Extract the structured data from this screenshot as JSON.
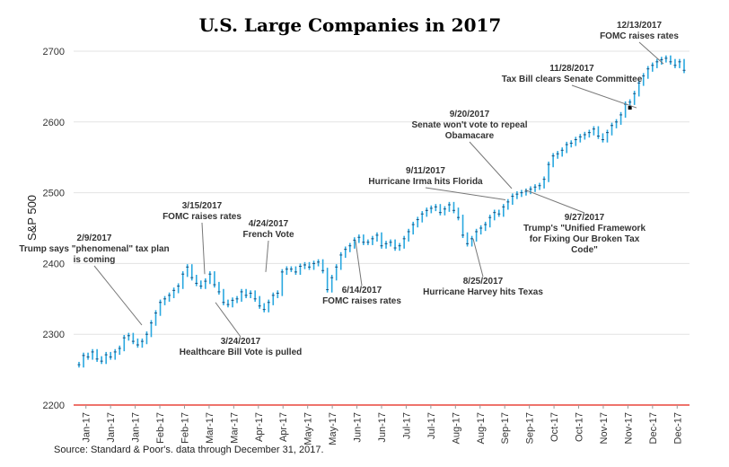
{
  "chart_data": {
    "type": "line",
    "title": "U.S. Large Companies in 2017",
    "ylabel": "S&P 500",
    "xlabel": "",
    "ylim": [
      2200,
      2700
    ],
    "yticks": [
      2200,
      2300,
      2400,
      2500,
      2600,
      2700
    ],
    "x_tick_labels": [
      "Jan-17",
      "Jan-17",
      "Jan-17",
      "Feb-17",
      "Feb-17",
      "Mar-17",
      "Mar-17",
      "Apr-17",
      "Apr-17",
      "May-17",
      "May-17",
      "Jun-17",
      "Jun-17",
      "Jul-17",
      "Jul-17",
      "Aug-17",
      "Aug-17",
      "Sep-17",
      "Sep-17",
      "Oct-17",
      "Oct-17",
      "Nov-17",
      "Nov-17",
      "Dec-17",
      "Dec-17"
    ],
    "series": [
      {
        "values": [
          2257,
          2270,
          2268,
          2275,
          2265,
          2262,
          2271,
          2268,
          2275,
          2280,
          2295,
          2298,
          2290,
          2285,
          2290,
          2300,
          2316,
          2330,
          2345,
          2350,
          2355,
          2362,
          2368,
          2385,
          2395,
          2380,
          2372,
          2368,
          2375,
          2385,
          2370,
          2360,
          2345,
          2342,
          2348,
          2350,
          2360,
          2355,
          2358,
          2350,
          2340,
          2335,
          2345,
          2355,
          2358,
          2388,
          2392,
          2392,
          2388,
          2396,
          2398,
          2395,
          2400,
          2402,
          2390,
          2363,
          2380,
          2395,
          2412,
          2420,
          2425,
          2433,
          2437,
          2430,
          2430,
          2435,
          2440,
          2425,
          2428,
          2430,
          2422,
          2425,
          2435,
          2445,
          2455,
          2462,
          2470,
          2475,
          2478,
          2480,
          2472,
          2477,
          2483,
          2475,
          2465,
          2440,
          2428,
          2435,
          2445,
          2450,
          2455,
          2465,
          2472,
          2470,
          2480,
          2487,
          2495,
          2498,
          2500,
          2502,
          2505,
          2508,
          2510,
          2519,
          2540,
          2552,
          2555,
          2560,
          2568,
          2570,
          2575,
          2579,
          2582,
          2585,
          2590,
          2580,
          2575,
          2585,
          2595,
          2600,
          2610,
          2625,
          2628,
          2640,
          2655,
          2665,
          2675,
          2680,
          2685,
          2688,
          2690,
          2685,
          2680,
          2685,
          2673
        ]
      }
    ],
    "annotations": [
      {
        "date": "2/9/2017",
        "lines": [
          "2/9/2017",
          "Trump says \"phenomenal\" tax plan",
          "is coming"
        ]
      },
      {
        "date": "3/15/2017",
        "lines": [
          "3/15/2017",
          "FOMC raises rates"
        ]
      },
      {
        "date": "3/24/2017",
        "lines": [
          "3/24/2017",
          "Healthcare Bill Vote is pulled"
        ]
      },
      {
        "date": "4/24/2017",
        "lines": [
          "4/24/2017",
          "French Vote"
        ]
      },
      {
        "date": "6/14/2017",
        "lines": [
          "6/14/2017",
          "FOMC raises rates"
        ]
      },
      {
        "date": "8/25/2017",
        "lines": [
          "8/25/2017",
          "Hurricane Harvey hits Texas"
        ]
      },
      {
        "date": "9/11/2017",
        "lines": [
          "9/11/2017",
          "Hurricane Irma hits Florida"
        ]
      },
      {
        "date": "9/20/2017",
        "lines": [
          "9/20/2017",
          "Senate won't vote to repeal",
          "Obamacare"
        ]
      },
      {
        "date": "9/27/2017",
        "lines": [
          "9/27/2017",
          "Trump's \"Unified Framework",
          "for Fixing Our Broken Tax",
          "Code\""
        ]
      },
      {
        "date": "11/28/2017",
        "lines": [
          "11/28/2017",
          "Tax Bill clears Senate Committee"
        ]
      },
      {
        "date": "12/13/2017",
        "lines": [
          "12/13/2017",
          "FOMC raises rates"
        ]
      }
    ],
    "source": "Source: Standard & Poor's. data through December 31, 2017.",
    "colors": {
      "series": "#29a8e0",
      "baseline": "#e8453c",
      "grid": "#e3e3e3"
    }
  }
}
